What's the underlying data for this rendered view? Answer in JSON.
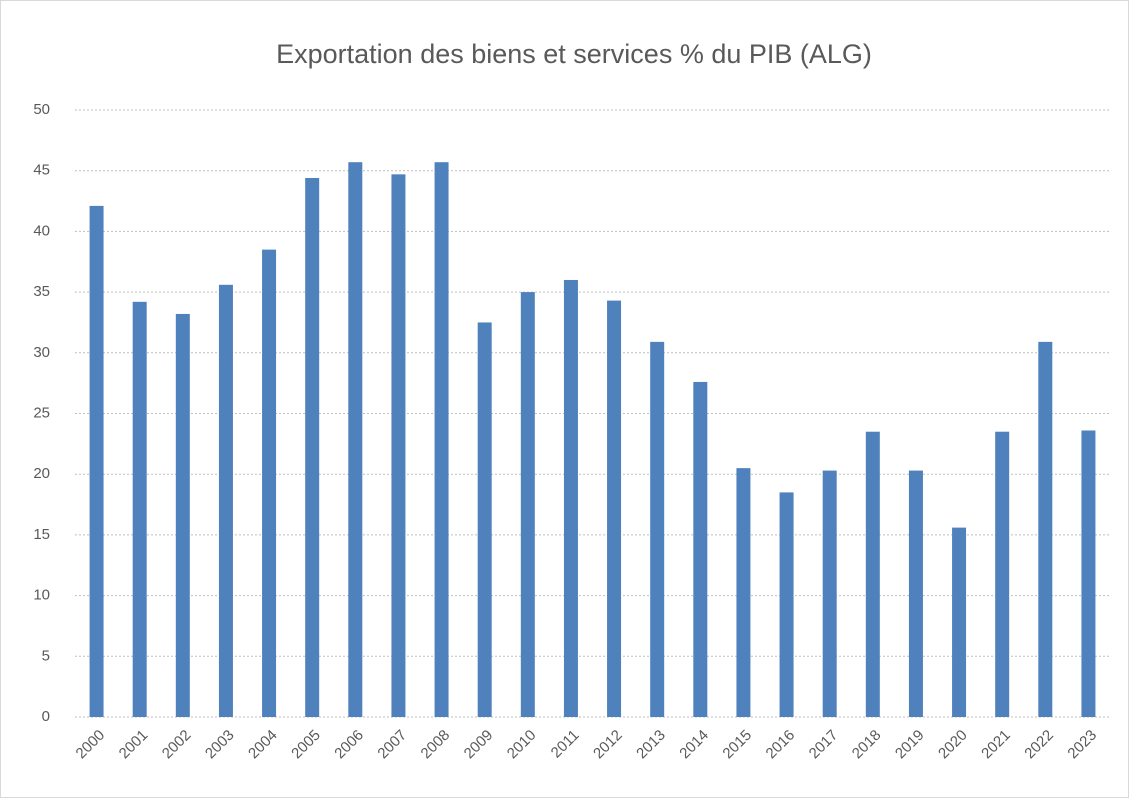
{
  "chart_data": {
    "type": "bar",
    "title": "Exportation des biens et services % du PIB (ALG)",
    "categories": [
      "2000",
      "2001",
      "2002",
      "2003",
      "2004",
      "2005",
      "2006",
      "2007",
      "2008",
      "2009",
      "2010",
      "2011",
      "2012",
      "2013",
      "2014",
      "2015",
      "2016",
      "2017",
      "2018",
      "2019",
      "2020",
      "2021",
      "2022",
      "2023"
    ],
    "values": [
      42.1,
      34.2,
      33.2,
      35.6,
      38.5,
      44.4,
      45.7,
      44.7,
      45.7,
      32.5,
      35.0,
      36.0,
      34.3,
      30.9,
      27.6,
      20.5,
      18.5,
      20.3,
      23.5,
      20.3,
      15.6,
      23.5,
      30.9,
      23.6
    ],
    "color": "#4f81bd",
    "ylim": [
      0,
      50
    ],
    "yticks": [
      0,
      5,
      10,
      15,
      20,
      25,
      30,
      35,
      40,
      45,
      50
    ],
    "grid": true
  }
}
